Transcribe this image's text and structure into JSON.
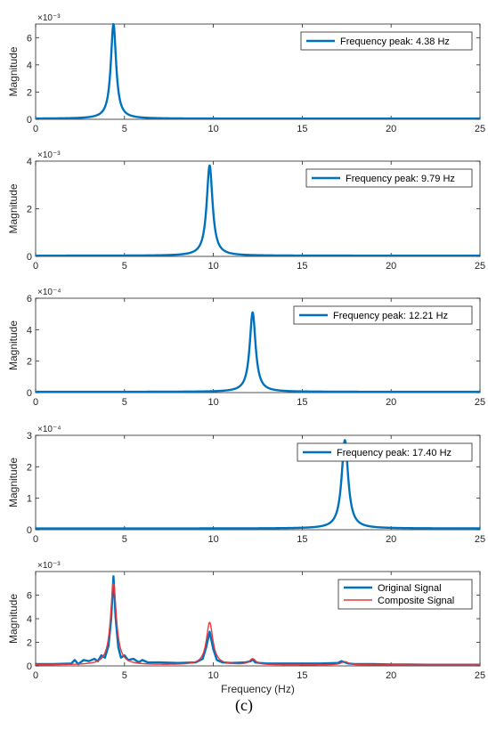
{
  "caption": "(c)",
  "colors": {
    "blue": "#0072BD",
    "red": "#E8383D",
    "axis": "#262626"
  },
  "chart_data": [
    {
      "type": "line",
      "xlabel": "",
      "ylabel": "Magnitude",
      "xlim": [
        0,
        25
      ],
      "ylim": [
        0,
        7
      ],
      "xticks": [
        "0",
        "5",
        "10",
        "15",
        "20",
        "25"
      ],
      "yticks": [
        "0",
        "2",
        "4",
        "6"
      ],
      "ytick_values": [
        0,
        2,
        4,
        6
      ],
      "exponent": "×10⁻³",
      "legend_position": "top-right",
      "series": [
        {
          "name": "Frequency peak: 4.38 Hz",
          "peak_x": 4.38,
          "peak_y": 7.0,
          "width": 0.18,
          "baseline": 0.05
        }
      ]
    },
    {
      "type": "line",
      "xlabel": "",
      "ylabel": "Magnitude",
      "xlim": [
        0,
        25
      ],
      "ylim": [
        0,
        4
      ],
      "xticks": [
        "0",
        "5",
        "10",
        "15",
        "20",
        "25"
      ],
      "yticks": [
        "0",
        "2",
        "4"
      ],
      "ytick_values": [
        0,
        2,
        4
      ],
      "exponent": "×10⁻³",
      "legend_position": "top-right",
      "series": [
        {
          "name": "Frequency peak: 9.79 Hz",
          "peak_x": 9.79,
          "peak_y": 3.82,
          "width": 0.2,
          "baseline": 0.03
        }
      ]
    },
    {
      "type": "line",
      "xlabel": "",
      "ylabel": "Magnitude",
      "xlim": [
        0,
        25
      ],
      "ylim": [
        0,
        6
      ],
      "xticks": [
        "0",
        "5",
        "10",
        "15",
        "20",
        "25"
      ],
      "yticks": [
        "0",
        "2",
        "4",
        "6"
      ],
      "ytick_values": [
        0,
        2,
        4,
        6
      ],
      "exponent": "×10⁻⁴",
      "legend_position": "top-right",
      "series": [
        {
          "name": "Frequency peak: 12.21 Hz",
          "peak_x": 12.21,
          "peak_y": 5.1,
          "width": 0.2,
          "baseline": 0.05
        }
      ]
    },
    {
      "type": "line",
      "xlabel": "",
      "ylabel": "Magnitude",
      "xlim": [
        0,
        25
      ],
      "ylim": [
        0,
        3
      ],
      "xticks": [
        "0",
        "5",
        "10",
        "15",
        "20",
        "25"
      ],
      "yticks": [
        "0",
        "1",
        "2",
        "3"
      ],
      "ytick_values": [
        0,
        1,
        2,
        3
      ],
      "exponent": "×10⁻⁴",
      "legend_position": "top-right",
      "series": [
        {
          "name": "Frequency peak: 17.40 Hz",
          "peak_x": 17.4,
          "peak_y": 2.85,
          "width": 0.22,
          "baseline": 0.04
        }
      ]
    },
    {
      "type": "line",
      "xlabel": "Frequency (Hz)",
      "ylabel": "Magnitude",
      "xlim": [
        0,
        25
      ],
      "ylim": [
        0,
        8
      ],
      "xticks": [
        "0",
        "5",
        "10",
        "15",
        "20",
        "25"
      ],
      "yticks": [
        "0",
        "2",
        "4",
        "6"
      ],
      "ytick_values": [
        0,
        2,
        4,
        6
      ],
      "exponent": "×10⁻³",
      "legend_position": "top-right",
      "series": [
        {
          "name": "Original Signal",
          "x": [
            0,
            1,
            2,
            2.2,
            2.4,
            2.7,
            3,
            3.3,
            3.5,
            3.7,
            3.9,
            4.1,
            4.25,
            4.38,
            4.5,
            4.65,
            4.8,
            5,
            5.2,
            5.5,
            5.8,
            6,
            6.3,
            7,
            8,
            9,
            9.4,
            9.6,
            9.79,
            10,
            10.2,
            10.5,
            11,
            11.8,
            12.1,
            12.21,
            12.35,
            12.6,
            13,
            14,
            15,
            16,
            17,
            17.2,
            17.4,
            17.6,
            18,
            19,
            20,
            21,
            22,
            23,
            24,
            25
          ],
          "y": [
            0.15,
            0.15,
            0.2,
            0.5,
            0.15,
            0.5,
            0.4,
            0.6,
            0.4,
            0.9,
            0.7,
            1.7,
            4.0,
            7.6,
            4.1,
            1.6,
            0.7,
            0.9,
            0.5,
            0.6,
            0.3,
            0.5,
            0.3,
            0.3,
            0.25,
            0.3,
            0.6,
            1.6,
            2.9,
            1.4,
            0.5,
            0.3,
            0.25,
            0.3,
            0.4,
            0.55,
            0.3,
            0.25,
            0.2,
            0.2,
            0.2,
            0.2,
            0.25,
            0.4,
            0.3,
            0.2,
            0.15,
            0.15,
            0.12,
            0.12,
            0.1,
            0.1,
            0.1,
            0.1
          ]
        },
        {
          "name": "Composite Signal",
          "peaks": [
            {
              "x": 4.38,
              "y": 6.9,
              "width": 0.2
            },
            {
              "x": 9.79,
              "y": 3.6,
              "width": 0.22
            },
            {
              "x": 12.21,
              "y": 0.5,
              "width": 0.22
            },
            {
              "x": 17.4,
              "y": 0.28,
              "width": 0.25
            }
          ],
          "baseline": 0.08
        }
      ]
    }
  ]
}
